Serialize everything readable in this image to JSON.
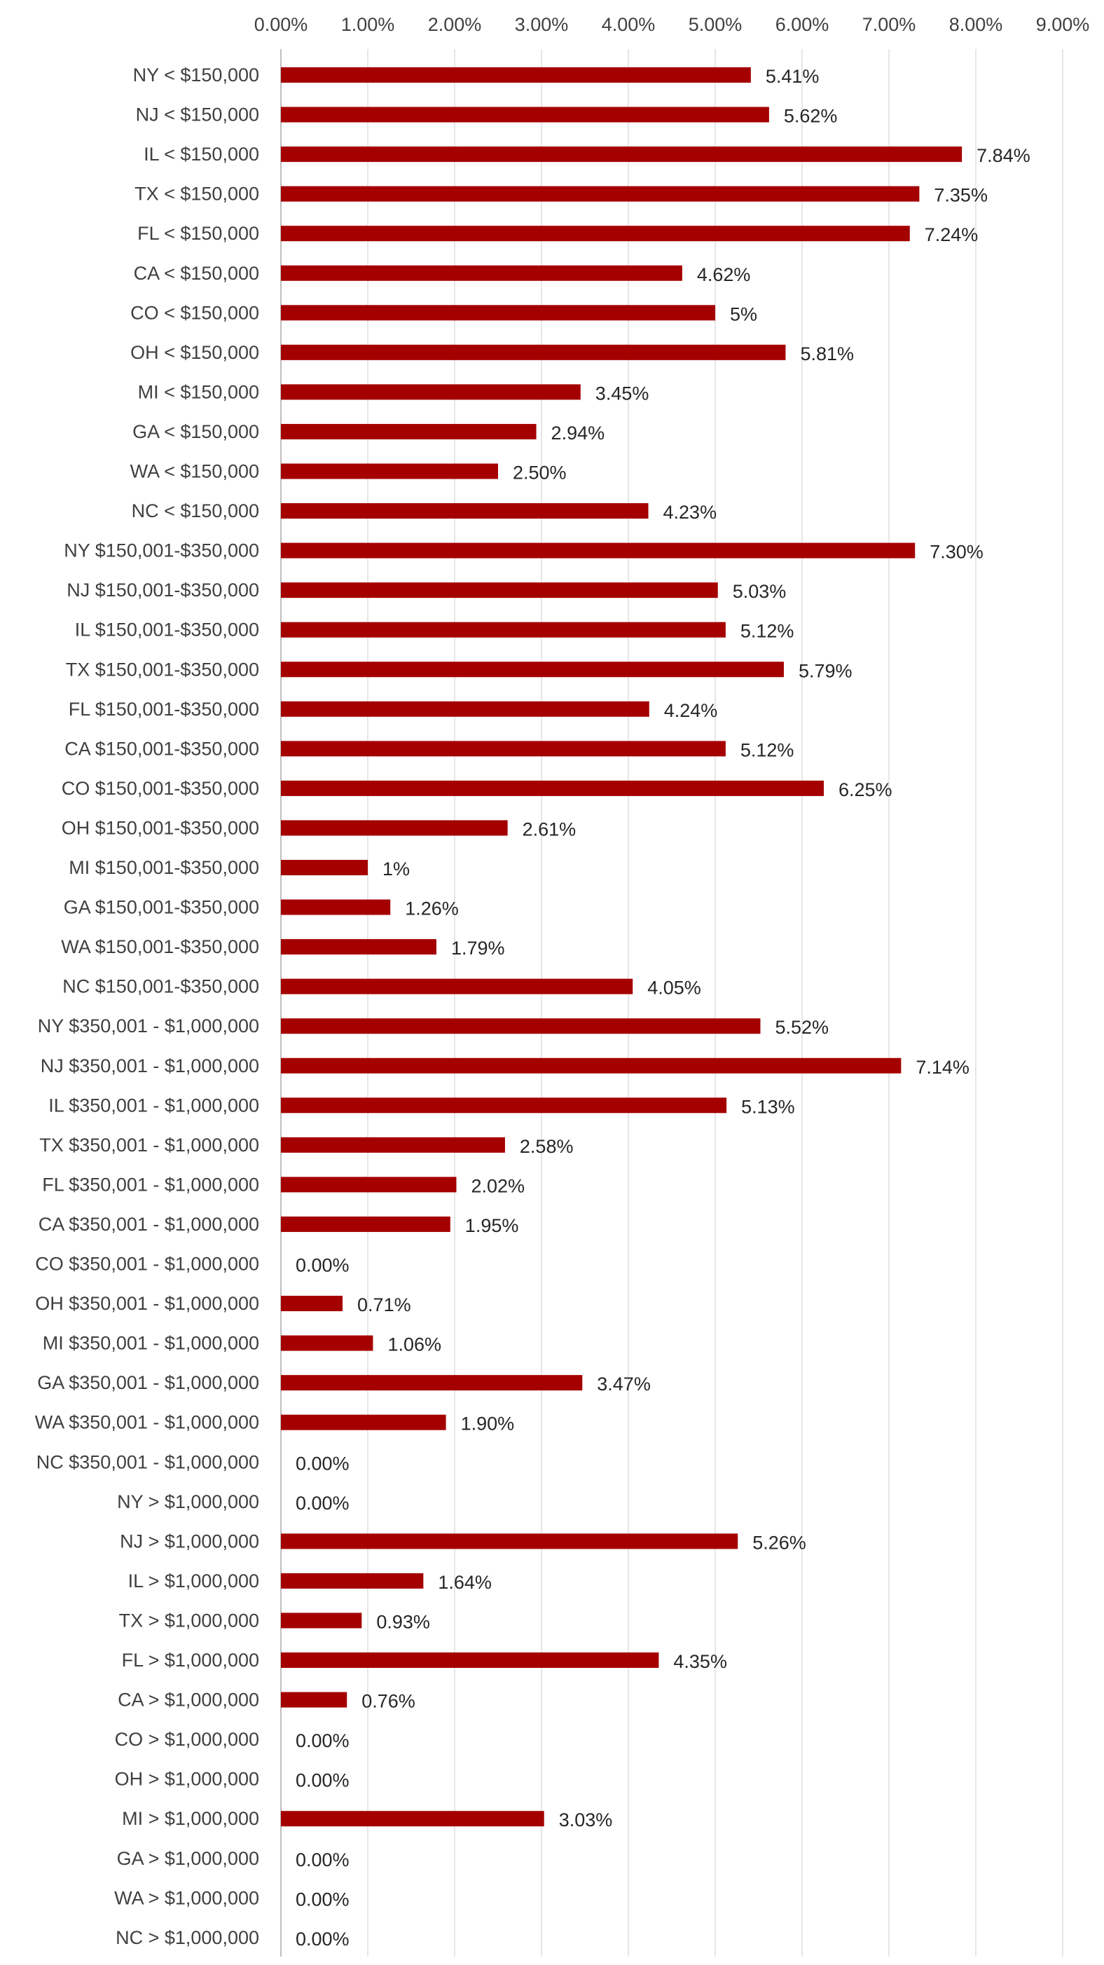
{
  "chart_data": {
    "type": "bar",
    "orientation": "horizontal",
    "title": "",
    "xlabel": "",
    "ylabel": "",
    "xlim": [
      0,
      9
    ],
    "x_axis_position": "top",
    "grid": true,
    "legend": "none",
    "bar_color": "#A50000",
    "x_ticks": [
      "0.00%",
      "1.00%",
      "2.00%",
      "3.00%",
      "4.00%",
      "5.00%",
      "6.00%",
      "7.00%",
      "8.00%",
      "9.00%"
    ],
    "categories": [
      "NY < $150,000",
      "NJ < $150,000",
      "IL < $150,000",
      "TX < $150,000",
      "FL < $150,000",
      "CA < $150,000",
      "CO < $150,000",
      "OH < $150,000",
      "MI < $150,000",
      "GA < $150,000",
      "WA < $150,000",
      "NC < $150,000",
      "NY $150,001-$350,000",
      "NJ $150,001-$350,000",
      "IL $150,001-$350,000",
      "TX $150,001-$350,000",
      "FL $150,001-$350,000",
      "CA $150,001-$350,000",
      "CO $150,001-$350,000",
      "OH $150,001-$350,000",
      "MI $150,001-$350,000",
      "GA $150,001-$350,000",
      "WA $150,001-$350,000",
      "NC $150,001-$350,000",
      "NY $350,001 - $1,000,000",
      "NJ $350,001 - $1,000,000",
      "IL $350,001 - $1,000,000",
      "TX $350,001 - $1,000,000",
      "FL $350,001 - $1,000,000",
      "CA $350,001 - $1,000,000",
      "CO $350,001 - $1,000,000",
      "OH $350,001 - $1,000,000",
      "MI $350,001 - $1,000,000",
      "GA $350,001 - $1,000,000",
      "WA $350,001 - $1,000,000",
      "NC $350,001 - $1,000,000",
      "NY > $1,000,000",
      "NJ > $1,000,000",
      "IL > $1,000,000",
      "TX > $1,000,000",
      "FL > $1,000,000",
      "CA > $1,000,000",
      "CO > $1,000,000",
      "OH > $1,000,000",
      "MI > $1,000,000",
      "GA > $1,000,000",
      "WA > $1,000,000",
      "NC > $1,000,000"
    ],
    "values": [
      5.41,
      5.62,
      7.84,
      7.35,
      7.24,
      4.62,
      5,
      5.81,
      3.45,
      2.94,
      2.5,
      4.23,
      7.3,
      5.03,
      5.12,
      5.79,
      4.24,
      5.12,
      6.25,
      2.61,
      1,
      1.26,
      1.79,
      4.05,
      5.52,
      7.14,
      5.13,
      2.58,
      2.02,
      1.95,
      0,
      0.71,
      1.06,
      3.47,
      1.9,
      0,
      0,
      5.26,
      1.64,
      0.93,
      4.35,
      0.76,
      0,
      0,
      3.03,
      0,
      0,
      0
    ],
    "value_labels": [
      "5.41%",
      "5.62%",
      "7.84%",
      "7.35%",
      "7.24%",
      "4.62%",
      "5%",
      "5.81%",
      "3.45%",
      "2.94%",
      "2.50%",
      "4.23%",
      "7.30%",
      "5.03%",
      "5.12%",
      "5.79%",
      "4.24%",
      "5.12%",
      "6.25%",
      "2.61%",
      "1%",
      "1.26%",
      "1.79%",
      "4.05%",
      "5.52%",
      "7.14%",
      "5.13%",
      "2.58%",
      "2.02%",
      "1.95%",
      "0.00%",
      "0.71%",
      "1.06%",
      "3.47%",
      "1.90%",
      "0.00%",
      "0.00%",
      "5.26%",
      "1.64%",
      "0.93%",
      "4.35%",
      "0.76%",
      "0.00%",
      "0.00%",
      "3.03%",
      "0.00%",
      "0.00%",
      "0.00%"
    ]
  }
}
